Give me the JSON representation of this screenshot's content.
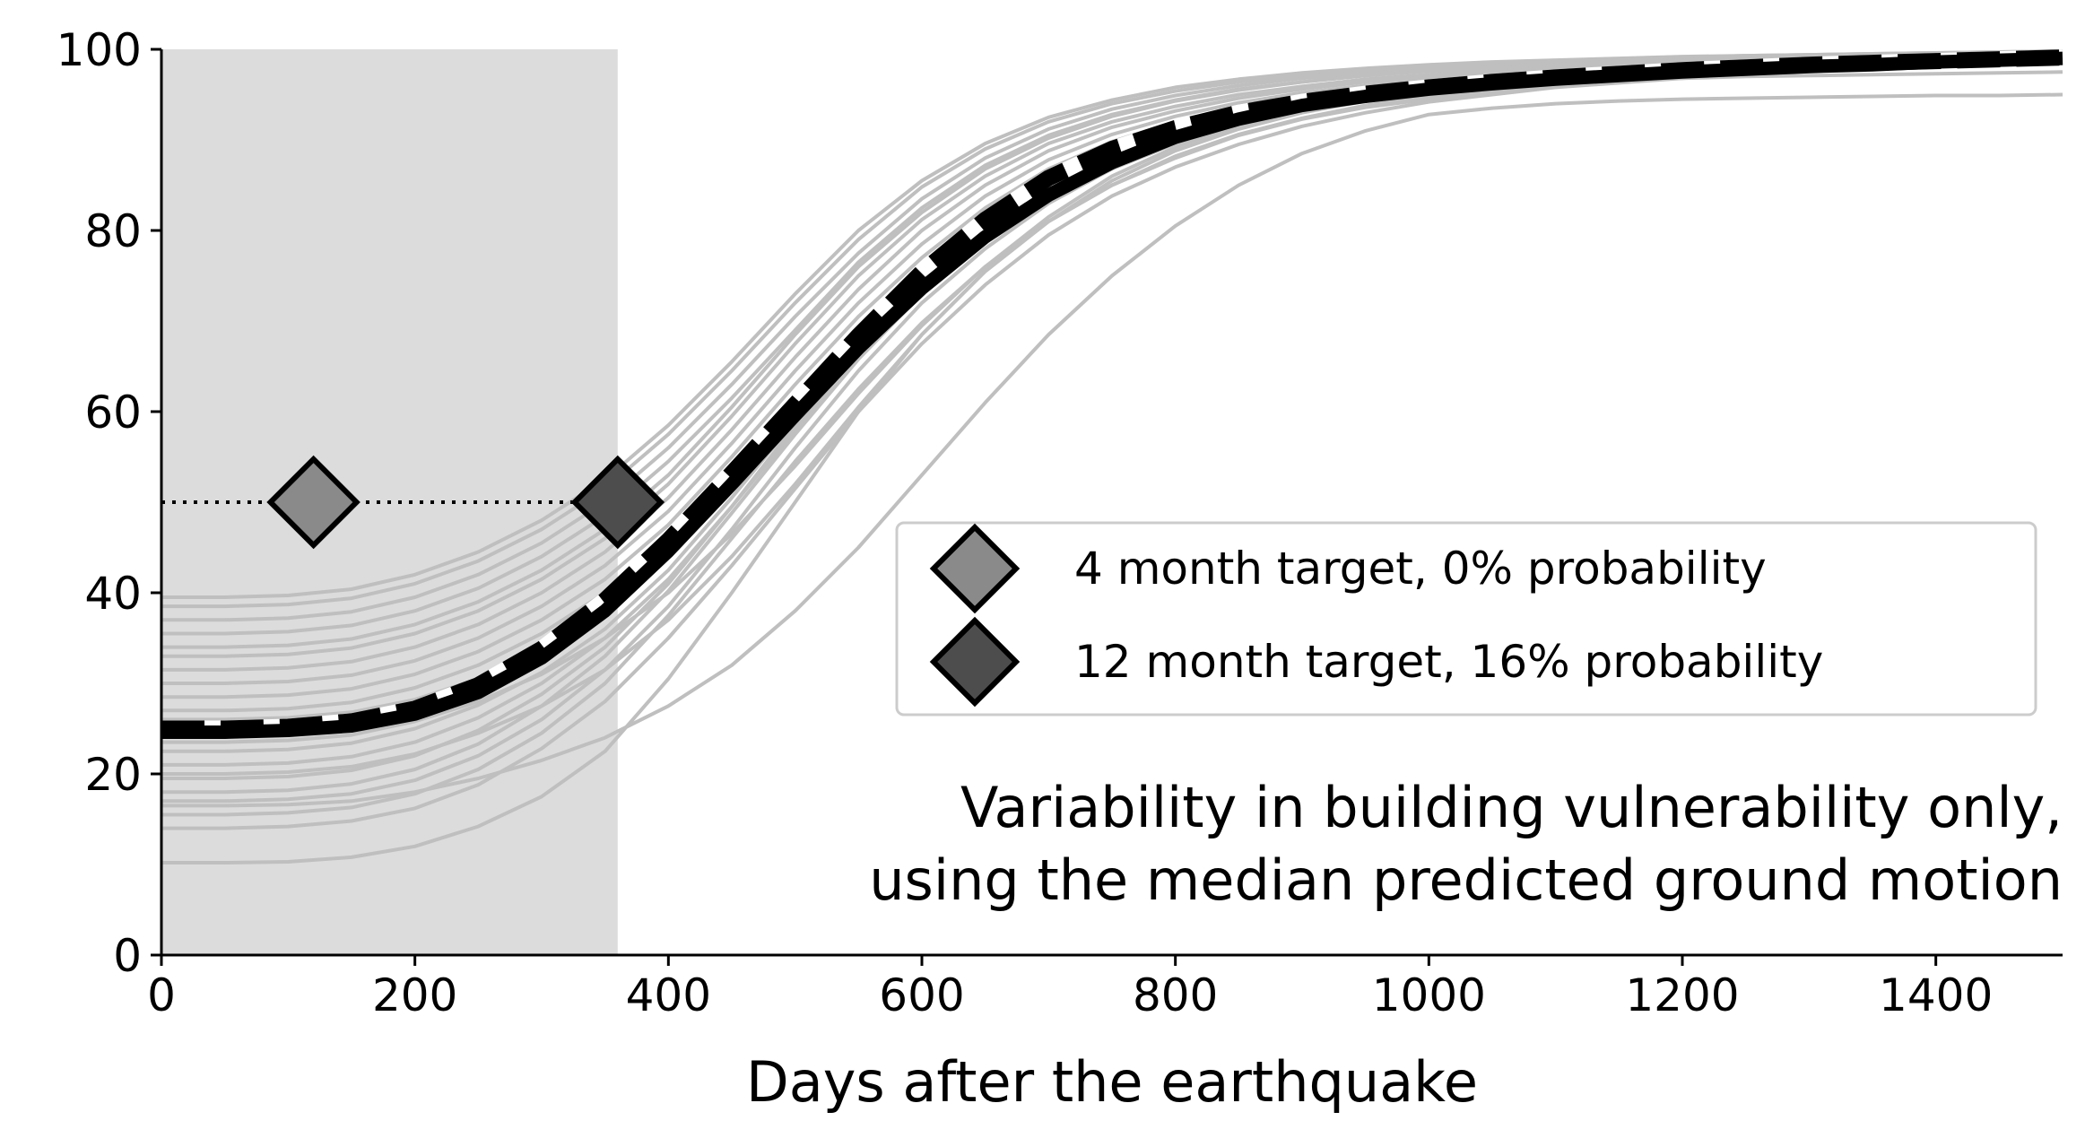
{
  "chart_data": {
    "type": "line",
    "xlabel": "Days after the earthquake",
    "ylabel": "",
    "xlim": [
      0,
      1500
    ],
    "ylim": [
      0,
      100
    ],
    "xticks": [
      0,
      200,
      400,
      600,
      800,
      1000,
      1200,
      1400
    ],
    "yticks": [
      0,
      20,
      40,
      60,
      80,
      100
    ],
    "grid": false,
    "legend_position": "center-right",
    "colors": {
      "realizations": "#bfbfbf",
      "median": "#000000",
      "mean_dashed": "#000000",
      "shaded_region": "#dcdcdc",
      "marker_4month": "#8a8a8a",
      "marker_12month": "#4d4d4d"
    },
    "shaded_region": {
      "x": [
        0,
        360
      ],
      "y": [
        0,
        100
      ]
    },
    "target_line": {
      "y": 50,
      "x": [
        0,
        360
      ],
      "style": "dotted"
    },
    "markers": [
      {
        "name": "4 month target, 0% probability",
        "x": 120,
        "y": 50
      },
      {
        "name": "12 month target, 16% probability",
        "x": 360,
        "y": 50
      }
    ],
    "x": [
      0,
      50,
      100,
      150,
      200,
      250,
      300,
      350,
      400,
      450,
      500,
      550,
      600,
      650,
      700,
      750,
      800,
      850,
      900,
      950,
      1000,
      1050,
      1100,
      1150,
      1200,
      1250,
      1300,
      1350,
      1400,
      1450,
      1500
    ],
    "series": [
      {
        "values": [
          24.6,
          24.6,
          24.8,
          25.3,
          26.6,
          29.0,
          32.8,
          38.0,
          44.6,
          52.0,
          59.6,
          67.0,
          73.6,
          79.3,
          83.9,
          87.5,
          90.3,
          92.3,
          93.8,
          94.8,
          95.6,
          96.2,
          96.7,
          97.1,
          97.5,
          97.8,
          98.1,
          98.3,
          98.6,
          98.8,
          99.0
        ]
      },
      {
        "values": [
          25.0,
          25.0,
          25.2,
          25.8,
          27.2,
          29.8,
          33.8,
          39.2,
          45.8,
          53.2,
          60.8,
          68.4,
          75.4,
          81.2,
          85.8,
          89.0,
          91.3,
          93.0,
          94.2,
          95.1,
          95.8,
          96.4,
          96.9,
          97.3,
          97.7,
          98.0,
          98.3,
          98.5,
          98.7,
          98.9,
          99.1
        ]
      },
      {
        "values": [
          10.2,
          10.2,
          10.3,
          10.8,
          12.0,
          14.2,
          17.5,
          22.5,
          30.5,
          40.0,
          50.0,
          60.0,
          68.5,
          75.5,
          81.0,
          85.0,
          88.0,
          90.5,
          92.3,
          93.6,
          94.5,
          95.3,
          96.0,
          96.5,
          97.0,
          97.4,
          97.8,
          98.0,
          98.3,
          98.5,
          98.7
        ]
      },
      {
        "values": [
          14.0,
          14.0,
          14.2,
          14.8,
          16.2,
          18.8,
          22.8,
          28.0,
          35.0,
          43.0,
          51.5,
          60.0,
          67.5,
          74.0,
          79.5,
          83.8,
          87.0,
          89.5,
          91.5,
          93.0,
          94.2,
          95.0,
          95.8,
          96.3,
          96.8,
          97.2,
          97.6,
          97.9,
          98.2,
          98.4,
          98.6
        ]
      },
      {
        "values": [
          15.5,
          15.5,
          15.7,
          16.3,
          17.8,
          20.5,
          24.5,
          30.0,
          37.5,
          46.0,
          54.5,
          62.5,
          69.8,
          76.0,
          81.0,
          85.0,
          88.2,
          90.6,
          92.4,
          93.8,
          94.8,
          95.6,
          96.3,
          96.8,
          97.2,
          97.6,
          97.9,
          98.2,
          98.4,
          98.6,
          98.8
        ]
      },
      {
        "values": [
          17.0,
          17.0,
          17.2,
          17.8,
          19.3,
          22.0,
          26.0,
          31.5,
          38.5,
          47.0,
          56.0,
          64.5,
          72.0,
          78.0,
          83.0,
          86.8,
          89.6,
          91.8,
          93.4,
          94.6,
          95.5,
          96.2,
          96.8,
          97.2,
          97.6,
          97.9,
          98.2,
          98.4,
          98.6,
          98.8,
          99.0
        ]
      },
      {
        "values": [
          18.0,
          18.0,
          18.2,
          18.9,
          20.5,
          23.3,
          27.5,
          33.0,
          40.2,
          48.8,
          57.5,
          65.8,
          73.0,
          79.0,
          83.8,
          87.4,
          90.0,
          92.0,
          93.5,
          94.7,
          95.6,
          96.3,
          96.9,
          97.3,
          97.7,
          98.0,
          98.3,
          98.5,
          98.7,
          98.9,
          99.1
        ]
      },
      {
        "values": [
          19.5,
          19.5,
          19.7,
          20.4,
          22.0,
          24.8,
          28.8,
          34.0,
          41.0,
          49.5,
          58.5,
          67.0,
          74.5,
          80.5,
          85.2,
          88.6,
          91.0,
          92.8,
          94.1,
          95.1,
          95.9,
          96.5,
          97.0,
          97.4,
          97.8,
          98.1,
          98.4,
          98.6,
          98.8,
          99.0,
          99.2
        ]
      },
      {
        "values": [
          21.0,
          21.0,
          21.2,
          21.9,
          23.5,
          26.2,
          30.0,
          35.0,
          41.5,
          49.5,
          58.0,
          66.5,
          74.0,
          80.0,
          84.8,
          88.3,
          90.8,
          92.7,
          94.0,
          95.0,
          95.8,
          96.4,
          96.9,
          97.3,
          97.7,
          98.0,
          98.3,
          98.5,
          98.7,
          98.9,
          99.1
        ]
      },
      {
        "values": [
          22.5,
          22.5,
          22.7,
          23.4,
          25.0,
          27.6,
          31.2,
          36.0,
          42.5,
          50.5,
          59.0,
          67.2,
          74.5,
          80.4,
          85.0,
          88.4,
          90.9,
          92.7,
          94.0,
          95.0,
          95.8,
          96.4,
          96.9,
          97.3,
          97.7,
          98.0,
          98.3,
          98.5,
          98.7,
          98.9,
          99.1
        ]
      },
      {
        "values": [
          27.0,
          27.0,
          27.2,
          27.9,
          29.5,
          32.0,
          35.5,
          40.0,
          46.0,
          53.5,
          61.5,
          69.0,
          75.5,
          81.0,
          85.5,
          88.8,
          91.2,
          92.9,
          94.2,
          95.2,
          96.0,
          96.6,
          97.1,
          97.5,
          97.9,
          98.2,
          98.4,
          98.6,
          98.8,
          99.0,
          99.2
        ]
      },
      {
        "values": [
          28.5,
          28.5,
          28.7,
          29.4,
          31.0,
          33.5,
          37.0,
          41.5,
          47.5,
          55.0,
          63.0,
          70.5,
          77.0,
          82.5,
          86.8,
          89.8,
          92.0,
          93.6,
          94.8,
          95.7,
          96.4,
          97.0,
          97.4,
          97.8,
          98.1,
          98.4,
          98.6,
          98.8,
          99.0,
          99.2,
          99.3
        ]
      },
      {
        "values": [
          30.0,
          30.0,
          30.2,
          30.9,
          32.5,
          35.0,
          38.5,
          43.0,
          49.0,
          56.5,
          64.5,
          72.0,
          78.5,
          83.8,
          87.8,
          90.6,
          92.6,
          94.1,
          95.2,
          96.0,
          96.7,
          97.2,
          97.6,
          98.0,
          98.3,
          98.5,
          98.7,
          98.9,
          99.1,
          99.2,
          99.4
        ]
      },
      {
        "values": [
          31.5,
          31.5,
          31.7,
          32.4,
          34.0,
          36.5,
          40.0,
          44.5,
          50.5,
          58.0,
          66.0,
          73.5,
          80.0,
          85.0,
          88.8,
          91.4,
          93.2,
          94.6,
          95.6,
          96.4,
          97.0,
          97.5,
          97.9,
          98.2,
          98.5,
          98.7,
          98.9,
          99.1,
          99.2,
          99.4,
          99.5
        ]
      },
      {
        "values": [
          33.0,
          33.0,
          33.2,
          33.9,
          35.5,
          38.0,
          41.5,
          46.0,
          52.0,
          59.5,
          67.5,
          75.0,
          81.2,
          86.0,
          89.6,
          92.0,
          93.7,
          95.0,
          95.9,
          96.7,
          97.2,
          97.7,
          98.0,
          98.3,
          98.6,
          98.8,
          99.0,
          99.1,
          99.3,
          99.4,
          99.5
        ]
      },
      {
        "values": [
          35.5,
          35.5,
          35.7,
          36.4,
          38.0,
          40.5,
          44.0,
          48.5,
          54.5,
          61.5,
          69.0,
          76.5,
          82.5,
          87.2,
          90.5,
          92.8,
          94.4,
          95.6,
          96.4,
          97.1,
          97.6,
          98.0,
          98.3,
          98.6,
          98.8,
          99.0,
          99.2,
          99.3,
          99.4,
          99.5,
          99.6
        ]
      },
      {
        "values": [
          37.0,
          37.0,
          37.2,
          37.9,
          39.5,
          42.0,
          45.5,
          50.0,
          56.0,
          63.0,
          70.5,
          77.5,
          83.5,
          88.0,
          91.2,
          93.4,
          94.9,
          96.0,
          96.8,
          97.4,
          97.9,
          98.2,
          98.5,
          98.8,
          99.0,
          99.2,
          99.3,
          99.4,
          99.5,
          99.6,
          99.7
        ]
      },
      {
        "values": [
          38.5,
          38.5,
          38.7,
          39.4,
          41.0,
          43.5,
          47.0,
          51.5,
          57.5,
          64.5,
          72.0,
          79.0,
          84.8,
          89.0,
          92.0,
          94.0,
          95.4,
          96.4,
          97.1,
          97.7,
          98.1,
          98.4,
          98.7,
          98.9,
          99.1,
          99.3,
          99.4,
          99.5,
          99.6,
          99.7,
          99.8
        ]
      },
      {
        "values": [
          39.5,
          39.5,
          39.7,
          40.4,
          42.0,
          44.5,
          48.0,
          52.5,
          58.5,
          65.5,
          73.0,
          80.0,
          85.5,
          89.6,
          92.5,
          94.4,
          95.8,
          96.7,
          97.4,
          97.9,
          98.3,
          98.6,
          98.8,
          99.0,
          99.2,
          99.3,
          99.4,
          99.5,
          99.6,
          99.7,
          99.8
        ]
      },
      {
        "values": [
          16.5,
          16.5,
          16.6,
          17.0,
          18.0,
          19.5,
          21.5,
          24.0,
          27.5,
          32.0,
          38.0,
          45.0,
          53.0,
          61.0,
          68.5,
          75.0,
          80.5,
          85.0,
          88.5,
          91.0,
          92.8,
          93.5,
          94.0,
          94.3,
          94.5,
          94.6,
          94.7,
          94.8,
          94.9,
          94.9,
          95.0
        ]
      },
      {
        "values": [
          23.5,
          23.5,
          23.7,
          24.3,
          25.8,
          28.0,
          31.0,
          35.0,
          40.0,
          46.5,
          54.0,
          62.0,
          69.5,
          76.0,
          81.5,
          86.0,
          89.2,
          91.6,
          93.3,
          94.5,
          95.3,
          95.9,
          96.3,
          96.6,
          96.8,
          97.0,
          97.1,
          97.2,
          97.3,
          97.4,
          97.5
        ]
      },
      {
        "values": [
          26.0,
          26.0,
          26.2,
          26.8,
          28.2,
          30.5,
          33.8,
          38.5,
          44.5,
          52.0,
          60.0,
          67.5,
          74.0,
          79.5,
          84.0,
          87.5,
          90.0,
          92.0,
          93.5,
          94.6,
          95.5,
          96.2,
          96.8,
          97.2,
          97.6,
          97.9,
          98.2,
          98.4,
          98.6,
          98.8,
          99.0
        ]
      },
      {
        "values": [
          20.0,
          20.0,
          20.2,
          20.8,
          22.2,
          24.5,
          27.5,
          31.5,
          37.0,
          44.0,
          52.0,
          60.5,
          68.5,
          75.5,
          81.0,
          85.5,
          88.8,
          91.2,
          93.0,
          94.3,
          95.2,
          96.0,
          96.6,
          97.0,
          97.4,
          97.7,
          98.0,
          98.3,
          98.5,
          98.7,
          98.9
        ]
      },
      {
        "values": [
          34.0,
          34.0,
          34.2,
          34.9,
          36.5,
          39.0,
          42.5,
          47.0,
          53.0,
          60.5,
          68.5,
          76.0,
          82.0,
          86.8,
          90.2,
          92.6,
          94.3,
          95.5,
          96.4,
          97.1,
          97.6,
          98.0,
          98.3,
          98.6,
          98.8,
          99.0,
          99.2,
          99.3,
          99.4,
          99.5,
          99.6
        ]
      }
    ],
    "median_series": {
      "values": [
        24.6,
        24.6,
        24.8,
        25.3,
        26.6,
        29.0,
        32.8,
        38.0,
        44.6,
        52.0,
        59.6,
        67.0,
        73.6,
        79.3,
        83.9,
        87.5,
        90.3,
        92.3,
        93.8,
        94.8,
        95.6,
        96.2,
        96.7,
        97.1,
        97.5,
        97.8,
        98.1,
        98.3,
        98.6,
        98.8,
        99.0
      ]
    },
    "mean_series": {
      "values": [
        25.0,
        25.0,
        25.2,
        25.8,
        27.2,
        29.8,
        33.8,
        39.2,
        45.8,
        53.2,
        60.8,
        68.4,
        75.4,
        81.2,
        85.8,
        89.0,
        91.3,
        93.0,
        94.2,
        95.1,
        95.8,
        96.4,
        96.9,
        97.3,
        97.7,
        98.0,
        98.3,
        98.5,
        98.7,
        98.9,
        99.1
      ]
    },
    "legend": {
      "items": [
        {
          "label": "4 month target, 0% probability",
          "color": "#8a8a8a"
        },
        {
          "label": "12 month target, 16% probability",
          "color": "#4d4d4d"
        }
      ]
    },
    "annotation": {
      "line1": "Variability in building vulnerability only,",
      "line2": "using the median predicted ground motion"
    }
  }
}
